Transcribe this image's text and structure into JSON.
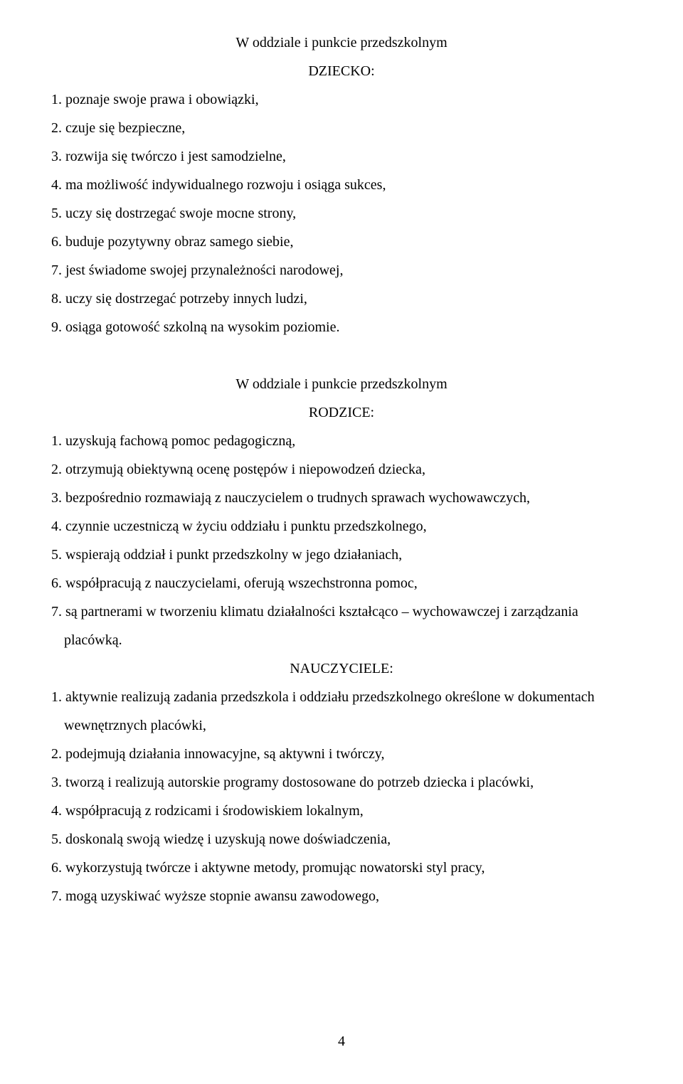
{
  "heading1": {
    "title": "W oddziale i punkcie przedszkolnym",
    "subtitle": "DZIECKO:"
  },
  "section1": {
    "items": [
      "1. poznaje swoje prawa i obowiązki,",
      "2. czuje się bezpieczne,",
      "3. rozwija się twórczo i jest samodzielne,",
      "4. ma możliwość indywidualnego rozwoju i osiąga sukces,",
      "5. uczy się dostrzegać swoje mocne strony,",
      "6. buduje pozytywny obraz samego siebie,",
      "7. jest świadome swojej przynależności narodowej,",
      "8. uczy się dostrzegać potrzeby innych ludzi,",
      "9. osiąga gotowość szkolną na wysokim poziomie."
    ]
  },
  "heading2": {
    "title": "W oddziale i punkcie przedszkolnym",
    "subtitle": "RODZICE:"
  },
  "section2": {
    "items": [
      "1. uzyskują fachową pomoc pedagogiczną,",
      "2. otrzymują obiektywną ocenę postępów i niepowodzeń dziecka,",
      "3. bezpośrednio rozmawiają z nauczycielem o trudnych sprawach wychowawczych,",
      "4. czynnie uczestniczą w życiu oddziału i punktu przedszkolnego,",
      "5. wspierają oddział i punkt przedszkolny w jego działaniach,",
      "6. współpracują z nauczycielami, oferują wszechstronna pomoc,",
      "7. są partnerami w tworzeniu klimatu działalności kształcąco – wychowawczej i zarządzania"
    ],
    "item7_cont": "placówką."
  },
  "heading3": {
    "subtitle": "NAUCZYCIELE:"
  },
  "section3": {
    "item1": "1. aktywnie realizują zadania przedszkola i oddziału przedszkolnego określone w dokumentach",
    "item1_cont": "wewnętrznych placówki,",
    "items": [
      "2. podejmują działania innowacyjne, są aktywni i twórczy,",
      "3. tworzą i realizują autorskie programy dostosowane do potrzeb dziecka i placówki,",
      "4. współpracują z rodzicami i środowiskiem lokalnym,",
      "5. doskonalą swoją wiedzę i uzyskują nowe doświadczenia,",
      "6. wykorzystują twórcze i aktywne metody, promując nowatorski styl pracy,",
      "7. mogą uzyskiwać wyższe stopnie awansu zawodowego,"
    ]
  },
  "pageNumber": "4"
}
